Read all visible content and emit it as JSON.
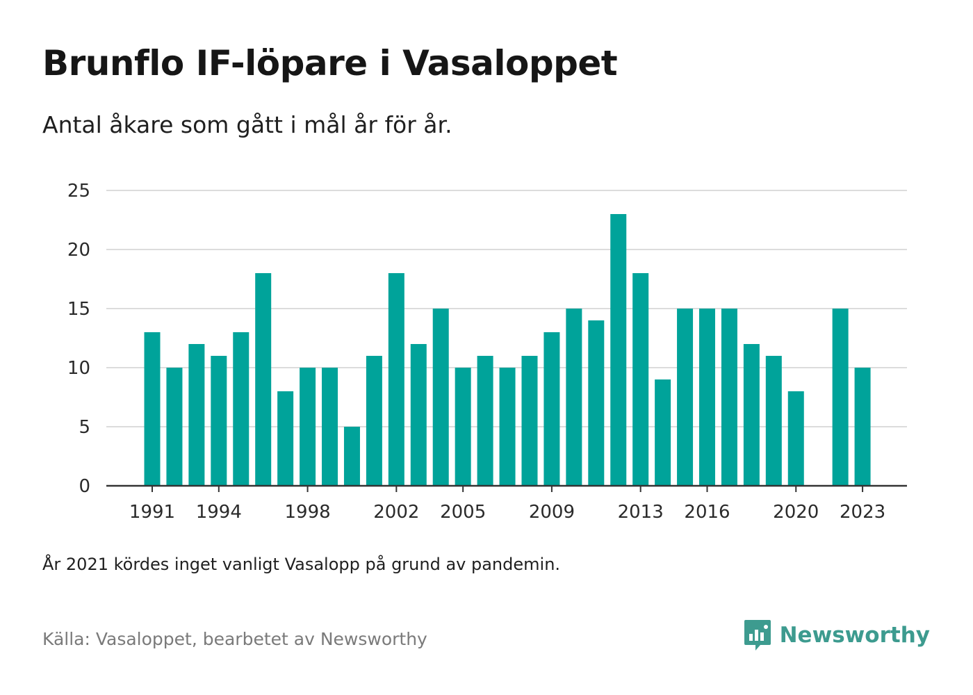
{
  "title": "Brunflo IF-löpare i Vasaloppet",
  "subtitle": "Antal åkare som gått i mål år för år.",
  "note": "År 2021 kördes inget vanligt Vasalopp på grund av pandemin.",
  "source": "Källa: Vasaloppet, bearbetet av Newsworthy",
  "brand": {
    "name": "Newsworthy",
    "icon": "newsworthy-logo-icon",
    "color": "#3d9b8f"
  },
  "chart_data": {
    "type": "bar",
    "title": "Brunflo IF-löpare i Vasaloppet",
    "subtitle": "Antal åkare som gått i mål år för år.",
    "xlabel": "",
    "ylabel": "",
    "categories": [
      1991,
      1992,
      1993,
      1994,
      1995,
      1996,
      1997,
      1998,
      1999,
      2000,
      2001,
      2002,
      2003,
      2004,
      2005,
      2006,
      2007,
      2008,
      2009,
      2010,
      2011,
      2012,
      2013,
      2014,
      2015,
      2016,
      2017,
      2018,
      2019,
      2020,
      2021,
      2022,
      2023
    ],
    "values": [
      13,
      10,
      12,
      11,
      13,
      18,
      8,
      10,
      10,
      5,
      11,
      18,
      12,
      15,
      10,
      11,
      10,
      11,
      13,
      15,
      14,
      23,
      18,
      9,
      15,
      15,
      15,
      12,
      11,
      8,
      0,
      15,
      10
    ],
    "x_tick_labels": [
      "1991",
      "1994",
      "1998",
      "2002",
      "2005",
      "2009",
      "2013",
      "2016",
      "2020",
      "2023"
    ],
    "y_ticks": [
      0,
      5,
      10,
      15,
      20,
      25
    ],
    "ylim": [
      0,
      25
    ],
    "grid": true,
    "bar_color": "#00a39a"
  }
}
